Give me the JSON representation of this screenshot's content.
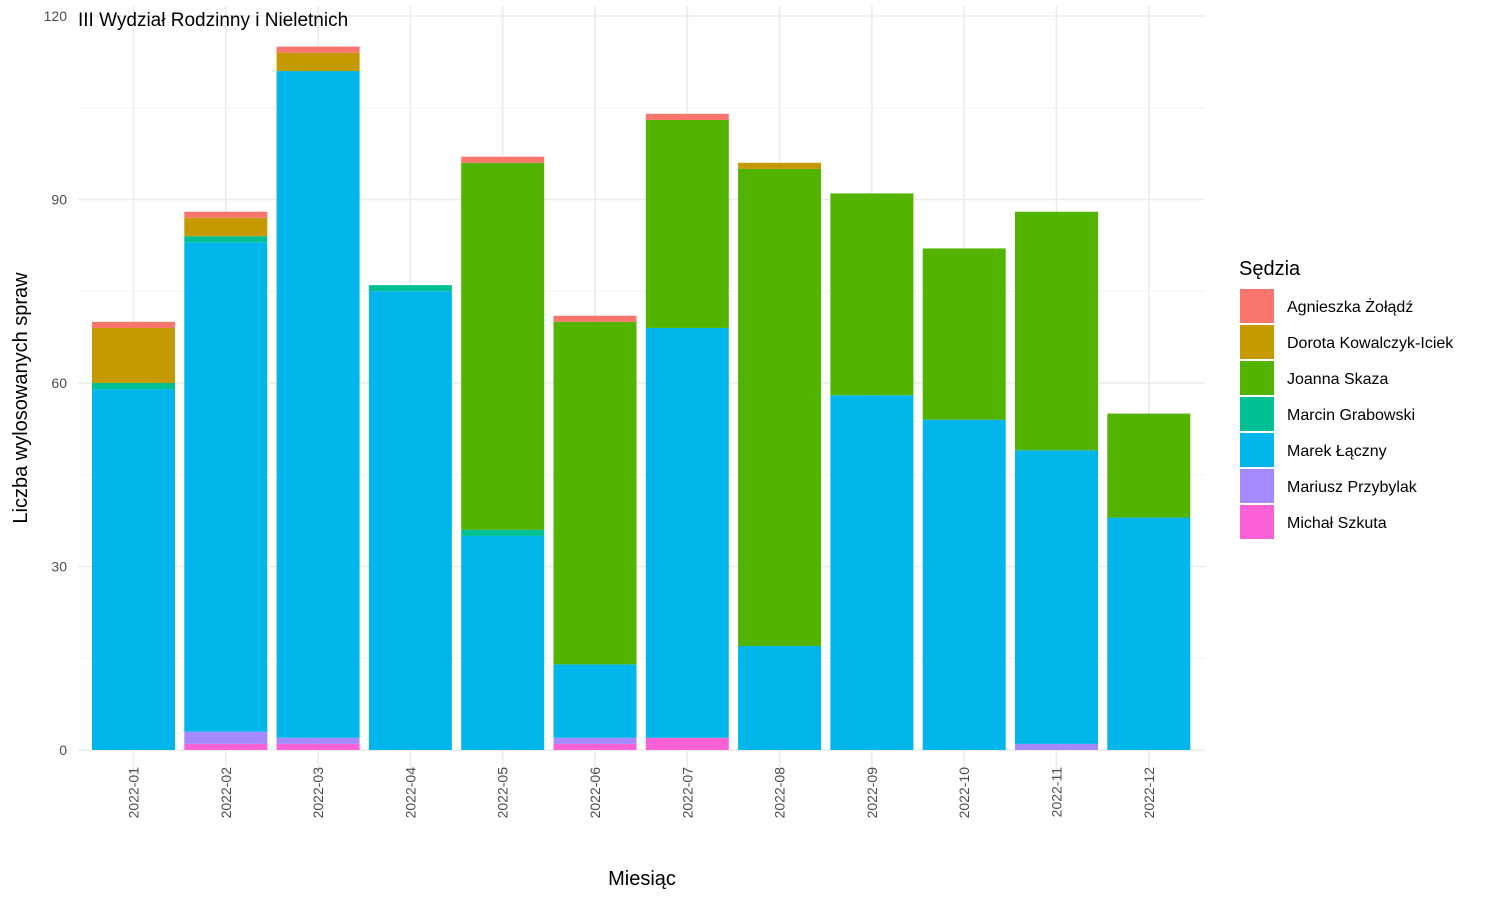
{
  "chart_data": {
    "type": "bar",
    "stacked": true,
    "title": "III Wydział Rodzinny i Nieletnich",
    "xlabel": "Miesiąc",
    "ylabel": "Liczba wylosowanych spraw",
    "ylim": [
      0,
      120
    ],
    "yticks": [
      0,
      30,
      60,
      90,
      120
    ],
    "grid": true,
    "legend_title": "Sędzia",
    "legend_position": "right",
    "categories": [
      "2022-01",
      "2022-02",
      "2022-03",
      "2022-04",
      "2022-05",
      "2022-06",
      "2022-07",
      "2022-08",
      "2022-09",
      "2022-10",
      "2022-11",
      "2022-12"
    ],
    "stack_order_bottom_to_top": [
      "Michał Szkuta",
      "Mariusz Przybylak",
      "Marek Łączny",
      "Marcin Grabowski",
      "Joanna Skaza",
      "Dorota Kowalczyk-Iciek",
      "Agnieszka Żołądź"
    ],
    "series": [
      {
        "name": "Agnieszka Żołądź",
        "color": "#F8766D",
        "values": [
          1,
          1,
          1,
          0,
          1,
          1,
          1,
          0,
          0,
          0,
          0,
          0
        ]
      },
      {
        "name": "Dorota Kowalczyk-Iciek",
        "color": "#C49A00",
        "values": [
          9,
          3,
          3,
          0,
          0,
          0,
          0,
          1,
          0,
          0,
          0,
          0
        ]
      },
      {
        "name": "Joanna Skaza",
        "color": "#53B400",
        "values": [
          0,
          0,
          0,
          0,
          60,
          56,
          34,
          78,
          33,
          28,
          39,
          17
        ]
      },
      {
        "name": "Marcin Grabowski",
        "color": "#00C094",
        "values": [
          1,
          1,
          0,
          1,
          1,
          0,
          0,
          0,
          0,
          0,
          0,
          0
        ]
      },
      {
        "name": "Marek Łączny",
        "color": "#00B6EB",
        "values": [
          59,
          80,
          109,
          75,
          35,
          12,
          67,
          17,
          58,
          54,
          48,
          38
        ]
      },
      {
        "name": "Mariusz Przybylak",
        "color": "#A58AFF",
        "values": [
          0,
          2,
          1,
          0,
          0,
          1,
          0,
          0,
          0,
          0,
          1,
          0
        ]
      },
      {
        "name": "Michał Szkuta",
        "color": "#FB61D7",
        "values": [
          0,
          1,
          1,
          0,
          0,
          1,
          2,
          0,
          0,
          0,
          0,
          0
        ]
      }
    ]
  }
}
